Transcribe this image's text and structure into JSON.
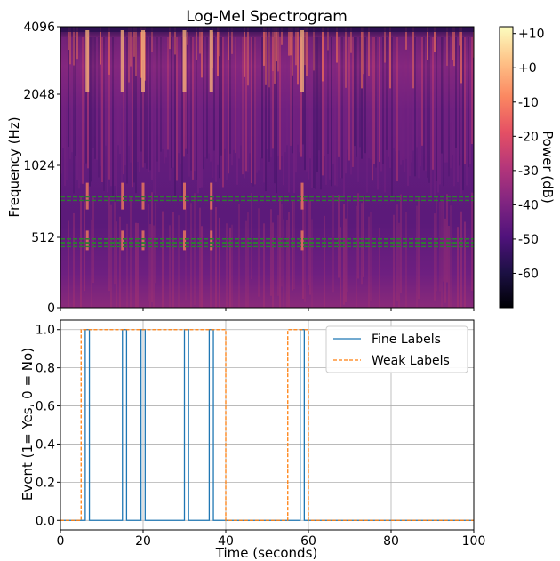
{
  "chart_data": [
    {
      "type": "heatmap",
      "title": "Log-Mel Spectrogram",
      "xlabel": "",
      "ylabel": "Frequency (Hz)",
      "ylim": [
        0,
        4096
      ],
      "y_ticks": [
        {
          "value": 0,
          "label": "0"
        },
        {
          "value": 512,
          "label": "512"
        },
        {
          "value": 1024,
          "label": "1024"
        },
        {
          "value": 2048,
          "label": "2048"
        },
        {
          "value": 4096,
          "label": "4096"
        }
      ],
      "colormap": "magma",
      "colorbar": {
        "label": "Power (dB)",
        "range": [
          -70,
          12
        ],
        "ticks": [
          {
            "value": 10,
            "label": "+10"
          },
          {
            "value": 0,
            "label": "+0"
          },
          {
            "value": -10,
            "label": "-10"
          },
          {
            "value": -20,
            "label": "-20"
          },
          {
            "value": -30,
            "label": "-30"
          },
          {
            "value": -40,
            "label": "-40"
          },
          {
            "value": -50,
            "label": "-50"
          },
          {
            "value": -60,
            "label": "-60"
          }
        ]
      },
      "band_markers_hz": [
        800,
        470,
        500
      ],
      "band_marker_color": "#2e7d32",
      "bright_event_times_s": [
        6.5,
        15,
        20,
        30,
        36.5,
        58.5
      ]
    },
    {
      "type": "line",
      "title": "",
      "xlabel": "Time (seconds)",
      "ylabel": "Event (1= Yes, 0 = No)",
      "xlim": [
        0,
        100
      ],
      "ylim": [
        -0.05,
        1.05
      ],
      "grid": true,
      "legend_position": "top-right",
      "x_ticks": [
        {
          "value": 0,
          "label": "0"
        },
        {
          "value": 20,
          "label": "20"
        },
        {
          "value": 40,
          "label": "40"
        },
        {
          "value": 60,
          "label": "60"
        },
        {
          "value": 80,
          "label": "80"
        },
        {
          "value": 100,
          "label": "100"
        }
      ],
      "y_ticks": [
        {
          "value": 0,
          "label": "0.0"
        },
        {
          "value": 0.2,
          "label": "0.2"
        },
        {
          "value": 0.4,
          "label": "0.4"
        },
        {
          "value": 0.6,
          "label": "0.6"
        },
        {
          "value": 0.8,
          "label": "0.8"
        },
        {
          "value": 1.0,
          "label": "1.0"
        }
      ],
      "series": [
        {
          "name": "Fine Labels",
          "color": "#1f77b4",
          "style": "solid",
          "x": [
            0,
            6,
            6,
            7,
            7,
            15,
            15,
            16,
            16,
            19.5,
            19.5,
            20.5,
            20.5,
            30,
            30,
            31,
            31,
            36,
            36,
            37,
            37,
            58,
            58,
            59,
            59,
            100
          ],
          "y": [
            0,
            0,
            1,
            1,
            0,
            0,
            1,
            1,
            0,
            0,
            1,
            1,
            0,
            0,
            1,
            1,
            0,
            0,
            1,
            1,
            0,
            0,
            1,
            1,
            0,
            0
          ]
        },
        {
          "name": "Weak Labels",
          "color": "#ff7f0e",
          "style": "dashed",
          "x": [
            0,
            5,
            5,
            40,
            40,
            55,
            55,
            60,
            60,
            100
          ],
          "y": [
            0,
            0,
            1,
            1,
            0,
            0,
            1,
            1,
            0,
            0
          ]
        }
      ]
    }
  ]
}
